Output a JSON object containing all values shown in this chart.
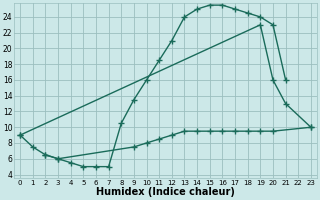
{
  "bg_color": "#cce8e8",
  "grid_color": "#9bbfbf",
  "line_color": "#1a6b5a",
  "line_width": 1.0,
  "marker": "+",
  "markersize": 4,
  "xlabel": "Humidex (Indice chaleur)",
  "xlim": [
    -0.5,
    23.5
  ],
  "ylim": [
    3.5,
    25.8
  ],
  "yticks": [
    4,
    6,
    8,
    10,
    12,
    14,
    16,
    18,
    20,
    22,
    24
  ],
  "curve1_x": [
    0,
    1,
    2,
    3,
    4,
    5,
    6,
    7,
    8,
    9,
    10,
    11,
    12,
    13,
    14,
    15,
    16,
    17,
    18,
    19,
    20,
    21
  ],
  "curve1_y": [
    9.0,
    7.5,
    6.5,
    6.0,
    5.5,
    5.0,
    5.0,
    5.0,
    10.5,
    13.5,
    16.0,
    18.5,
    21.0,
    24.0,
    25.0,
    25.5,
    25.5,
    25.0,
    24.5,
    24.0,
    23.0,
    16.0
  ],
  "curve2_x": [
    0,
    19,
    20,
    21,
    23
  ],
  "curve2_y": [
    9.0,
    23.0,
    16.0,
    13.0,
    10.0
  ],
  "curve3_x": [
    2,
    3,
    9,
    10,
    11,
    12,
    13,
    14,
    15,
    16,
    17,
    18,
    19,
    20,
    23
  ],
  "curve3_y": [
    6.5,
    6.0,
    7.5,
    8.0,
    8.5,
    9.0,
    9.5,
    9.5,
    9.5,
    9.5,
    9.5,
    9.5,
    9.5,
    9.5,
    10.0
  ]
}
